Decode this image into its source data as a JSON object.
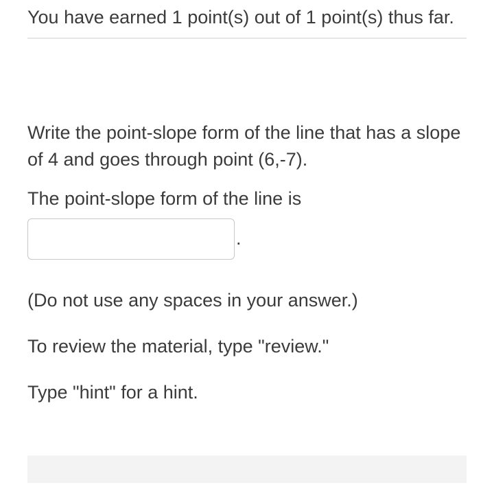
{
  "score": {
    "text": "You have earned 1 point(s) out of 1 point(s) thus far."
  },
  "question": {
    "prompt": "Write the point-slope form of the line that has a slope of 4 and goes through point (6,-7).",
    "answer_label": "The point-slope form of the line is",
    "input_value": "",
    "period": "."
  },
  "instructions": {
    "no_spaces": "(Do not use any spaces in your answer.)",
    "review": "To review the material, type \"review.\"",
    "hint": "Type \"hint\" for a hint."
  },
  "colors": {
    "text": "#3b3b3b",
    "divider": "#d0d0d0",
    "input_border": "#c8c8c8",
    "footer_bg": "#f3f3f3",
    "background": "#ffffff"
  },
  "typography": {
    "body_fontsize": 27,
    "font_family": "Arial"
  }
}
